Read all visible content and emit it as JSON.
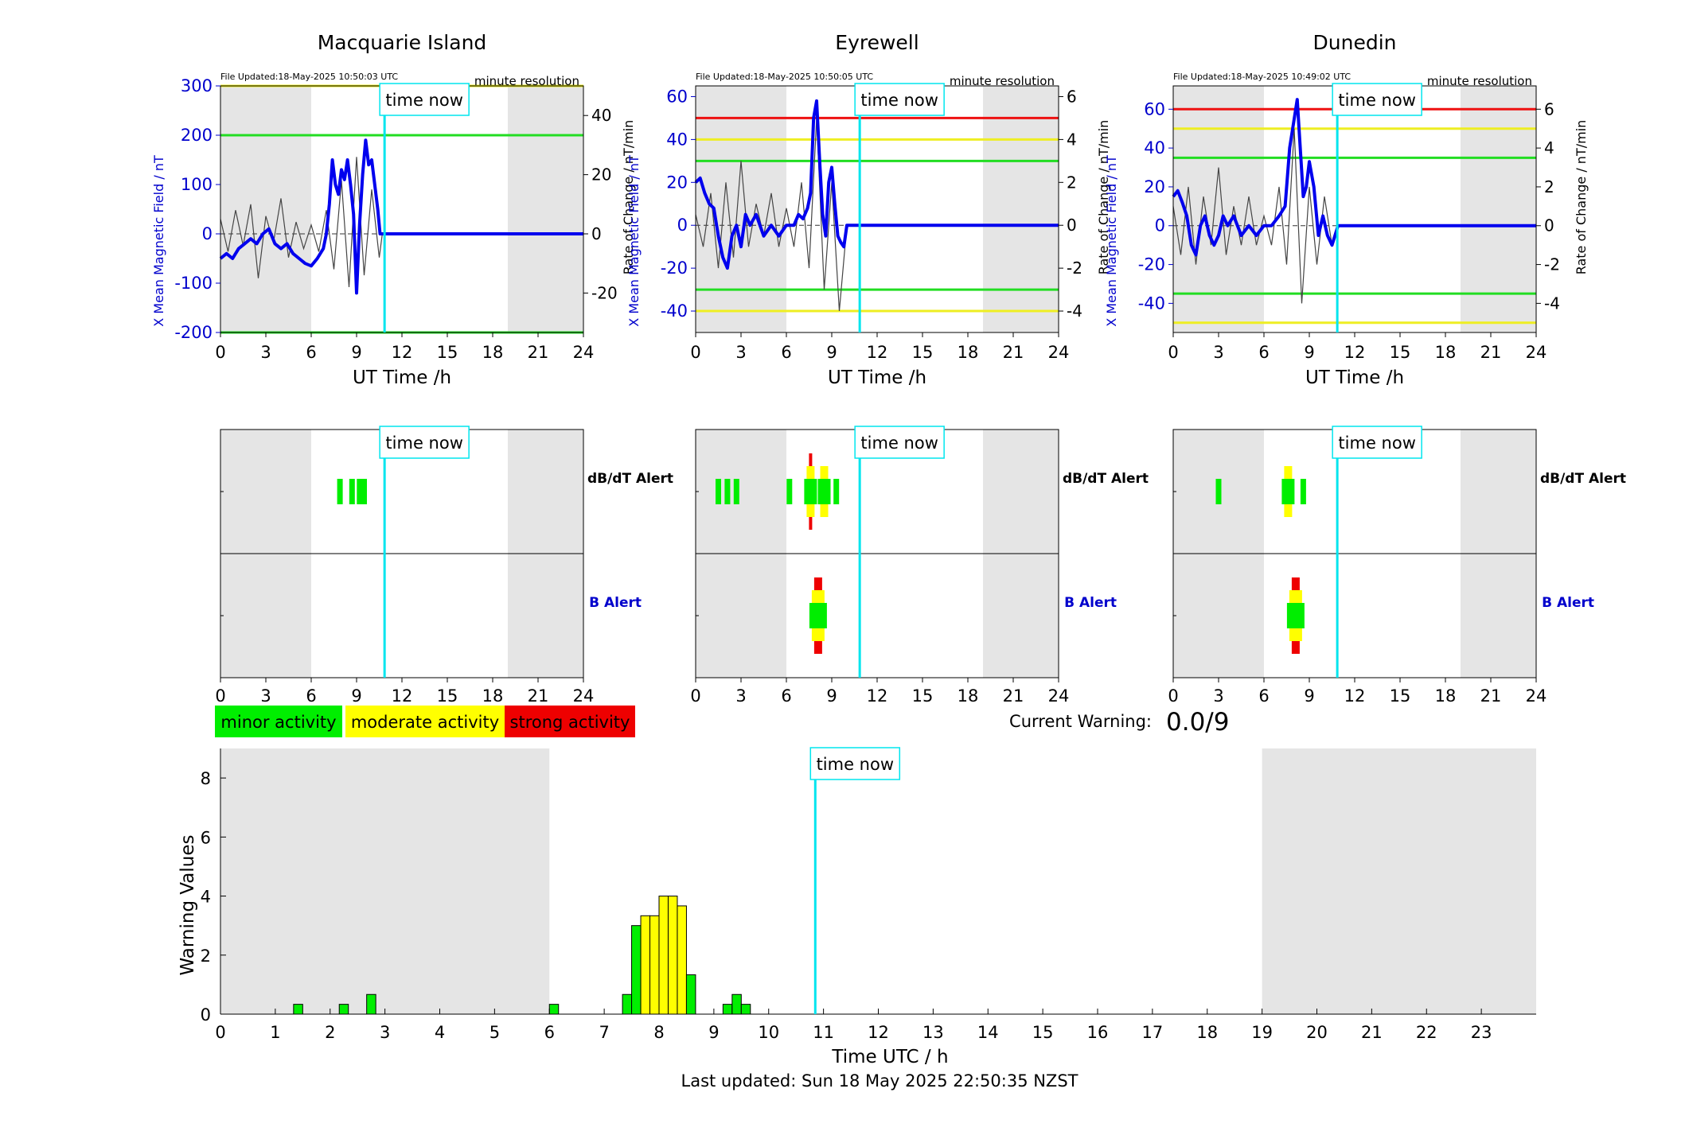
{
  "colors": {
    "night_shade": "#e5e5e5",
    "time_now_line": "#00e5ee",
    "series_bold": "#0000ee",
    "series_thin": "#444444",
    "axis_blue": "#0000cc",
    "minor": "#00ee00",
    "moderate": "#ffff00",
    "strong": "#ee0000",
    "threshold_green": "#22dd22",
    "threshold_yellow": "#eeee22",
    "threshold_red": "#ee1111"
  },
  "time_now_label": "time now",
  "minute_resolution_label": "minute resolution",
  "ut_xlabel": "UT Time /h",
  "left_ylabel": "X Mean Magnetic Field / nT",
  "right_ylabel": "Rate of Change / nT/min",
  "dbdt_alert_label": "dB/dT Alert",
  "b_alert_label": "B Alert",
  "legend": {
    "minor": "minor activity",
    "moderate": "moderate activity",
    "strong": "strong activity"
  },
  "current_warning": {
    "label": "Current Warning:",
    "value": "0.0/9"
  },
  "footer": "Last updated: Sun 18 May 2025 22:50:35 NZST",
  "time_now_hour": 10.85,
  "chart_data": [
    {
      "type": "line",
      "title": "Macquarie Island",
      "file_updated": "File Updated:18-May-2025 10:50:03 UTC",
      "xlabel": "UT Time /h",
      "ylabel": "X Mean Magnetic Field / nT",
      "y2label": "Rate of Change / nT/min",
      "xlim": [
        0,
        24
      ],
      "ylim": [
        -200,
        300
      ],
      "y2lim": [
        -33.33,
        50
      ],
      "xticks": [
        "0",
        "3",
        "6",
        "9",
        "12",
        "15",
        "18",
        "21",
        "24"
      ],
      "yticks": [
        -200,
        -100,
        0,
        100,
        200,
        300
      ],
      "y2ticks": [
        -20,
        0,
        20,
        40
      ],
      "night": [
        [
          0,
          6
        ],
        [
          19,
          24
        ]
      ],
      "thresholds": [
        {
          "value": 300,
          "level": "moderate"
        },
        {
          "value": 200,
          "level": "minor"
        },
        {
          "value": -200,
          "level": "minor"
        }
      ],
      "series": [
        {
          "x": [
            0,
            0.4,
            0.8,
            1.2,
            1.6,
            2.0,
            2.4,
            2.8,
            3.2,
            3.6,
            4.0,
            4.4,
            4.8,
            5.2,
            5.6,
            6.0,
            6.4,
            6.8,
            7.0,
            7.2,
            7.4,
            7.6,
            7.8,
            8.0,
            8.2,
            8.4,
            8.6,
            8.8,
            9.0,
            9.2,
            9.4,
            9.6,
            9.8,
            10.0,
            10.2,
            10.4,
            10.55,
            10.7,
            24
          ],
          "y": [
            -50,
            -40,
            -50,
            -30,
            -20,
            -10,
            -20,
            0,
            10,
            -20,
            -30,
            -20,
            -40,
            -50,
            -60,
            -65,
            -50,
            -30,
            0,
            60,
            150,
            100,
            80,
            130,
            110,
            150,
            100,
            40,
            -120,
            20,
            120,
            190,
            140,
            150,
            100,
            50,
            0,
            0,
            0
          ]
        }
      ],
      "rate_of_change": {
        "x": [
          0,
          0.5,
          1,
          1.5,
          2,
          2.5,
          3,
          3.5,
          4,
          4.5,
          5,
          5.5,
          6,
          6.5,
          7,
          7.5,
          8,
          8.5,
          9,
          9.5,
          10,
          10.5,
          10.7,
          24
        ],
        "y": [
          5,
          -6,
          8,
          -4,
          10,
          -15,
          6,
          -3,
          12,
          -8,
          4,
          -5,
          3,
          -6,
          8,
          -12,
          18,
          -18,
          26,
          -14,
          15,
          -8,
          0,
          0
        ]
      },
      "dbdt_alert": [
        {
          "x": 7.9,
          "level": "minor"
        },
        {
          "x": 8.7,
          "level": "minor"
        },
        {
          "x": 9.2,
          "level": "minor"
        },
        {
          "x": 9.5,
          "level": "minor"
        }
      ],
      "b_alert": []
    },
    {
      "type": "line",
      "title": "Eyrewell",
      "file_updated": "File Updated:18-May-2025 10:50:05 UTC",
      "xlabel": "UT Time /h",
      "ylabel": "X Mean Magnetic Field / nT",
      "y2label": "Rate of Change / nT/min",
      "xlim": [
        0,
        24
      ],
      "ylim": [
        -50,
        65
      ],
      "y2lim": [
        -5,
        6.5
      ],
      "xticks": [
        "0",
        "3",
        "6",
        "9",
        "12",
        "15",
        "18",
        "21",
        "24"
      ],
      "yticks": [
        -40,
        -20,
        0,
        20,
        40,
        60
      ],
      "y2ticks": [
        -4,
        -2,
        0,
        2,
        4,
        6
      ],
      "night": [
        [
          0,
          6
        ],
        [
          19,
          24
        ]
      ],
      "thresholds": [
        {
          "value": 50,
          "level": "strong"
        },
        {
          "value": 40,
          "level": "moderate"
        },
        {
          "value": 30,
          "level": "minor"
        },
        {
          "value": -30,
          "level": "minor"
        },
        {
          "value": -40,
          "level": "moderate"
        }
      ],
      "series": [
        {
          "x": [
            0,
            0.3,
            0.6,
            0.9,
            1.2,
            1.5,
            1.8,
            2.1,
            2.4,
            2.7,
            3.0,
            3.3,
            3.6,
            4.0,
            4.5,
            5.0,
            5.5,
            6.0,
            6.5,
            6.8,
            7.1,
            7.4,
            7.6,
            7.8,
            8.0,
            8.2,
            8.4,
            8.6,
            8.8,
            9.0,
            9.2,
            9.4,
            9.6,
            9.8,
            10.0,
            24
          ],
          "y": [
            20,
            22,
            15,
            10,
            8,
            -5,
            -15,
            -20,
            -5,
            0,
            -10,
            5,
            0,
            5,
            -5,
            0,
            -5,
            0,
            0,
            5,
            3,
            8,
            15,
            50,
            58,
            30,
            5,
            -5,
            20,
            27,
            10,
            -5,
            -8,
            -10,
            0,
            0
          ]
        }
      ],
      "rate_of_change": {
        "x": [
          0,
          0.5,
          1,
          1.5,
          2,
          2.5,
          3,
          3.5,
          4,
          4.5,
          5,
          5.5,
          6,
          6.5,
          7,
          7.5,
          8,
          8.5,
          9,
          9.5,
          10,
          24
        ],
        "y": [
          0.5,
          -1,
          1.5,
          -2,
          2,
          -1.5,
          3,
          -1,
          1,
          -0.5,
          1.5,
          -1,
          0.8,
          -1,
          2,
          -2,
          5,
          -3,
          2,
          -4,
          0,
          0
        ]
      },
      "dbdt_alert": [
        {
          "x": 1.5,
          "level": "minor"
        },
        {
          "x": 2.1,
          "level": "minor"
        },
        {
          "x": 2.7,
          "level": "minor"
        },
        {
          "x": 6.2,
          "level": "minor"
        },
        {
          "x": 7.6,
          "level": "strong"
        },
        {
          "x": 8.5,
          "level": "moderate"
        },
        {
          "x": 9.3,
          "level": "minor"
        }
      ],
      "b_alert": [
        {
          "x": 8.1,
          "level": "strong"
        }
      ]
    },
    {
      "type": "line",
      "title": "Dunedin",
      "file_updated": "File Updated:18-May-2025 10:49:02 UTC",
      "xlabel": "UT Time /h",
      "ylabel": "X Mean Magnetic Field / nT",
      "y2label": "Rate of Change / nT/min",
      "xlim": [
        0,
        24
      ],
      "ylim": [
        -55,
        72
      ],
      "y2lim": [
        -5.5,
        7.2
      ],
      "xticks": [
        "0",
        "3",
        "6",
        "9",
        "12",
        "15",
        "18",
        "21",
        "24"
      ],
      "yticks": [
        -40,
        -20,
        0,
        20,
        40,
        60
      ],
      "y2ticks": [
        -4,
        -2,
        0,
        2,
        4,
        6
      ],
      "night": [
        [
          0,
          6
        ],
        [
          19,
          24
        ]
      ],
      "thresholds": [
        {
          "value": 60,
          "level": "strong"
        },
        {
          "value": 50,
          "level": "moderate"
        },
        {
          "value": 35,
          "level": "minor"
        },
        {
          "value": -35,
          "level": "minor"
        },
        {
          "value": -50,
          "level": "moderate"
        }
      ],
      "series": [
        {
          "x": [
            0,
            0.3,
            0.6,
            0.9,
            1.2,
            1.5,
            1.8,
            2.1,
            2.4,
            2.7,
            3.0,
            3.3,
            3.6,
            4.0,
            4.5,
            5.0,
            5.5,
            6.0,
            6.5,
            7.0,
            7.4,
            7.7,
            8.0,
            8.2,
            8.4,
            8.6,
            8.8,
            9.0,
            9.3,
            9.6,
            9.9,
            10.2,
            10.5,
            10.7,
            10.9,
            24
          ],
          "y": [
            15,
            18,
            12,
            5,
            -10,
            -15,
            0,
            5,
            -5,
            -10,
            -5,
            5,
            0,
            5,
            -5,
            0,
            -5,
            0,
            0,
            5,
            10,
            40,
            55,
            65,
            40,
            15,
            20,
            33,
            20,
            -5,
            5,
            -5,
            -10,
            -5,
            0,
            0
          ]
        }
      ],
      "rate_of_change": {
        "x": [
          0,
          0.5,
          1,
          1.5,
          2,
          2.5,
          3,
          3.5,
          4,
          4.5,
          5,
          5.5,
          6,
          6.5,
          7,
          7.5,
          8,
          8.5,
          9,
          9.5,
          10,
          10.5,
          10.9,
          24
        ],
        "y": [
          1,
          -1.5,
          2,
          -2,
          1.5,
          -1,
          3,
          -1.5,
          1,
          -1,
          1.5,
          -1,
          0.5,
          -1,
          2,
          -2,
          5,
          -4,
          2,
          -2,
          1.5,
          -1,
          0,
          0
        ]
      },
      "dbdt_alert": [
        {
          "x": 3.0,
          "level": "minor"
        },
        {
          "x": 7.6,
          "level": "moderate"
        },
        {
          "x": 8.6,
          "level": "minor"
        }
      ],
      "b_alert": [
        {
          "x": 8.1,
          "level": "strong"
        }
      ]
    },
    {
      "type": "bar",
      "xlabel": "Time UTC / h",
      "ylabel": "Warning Values",
      "xlim": [
        0,
        24
      ],
      "ylim": [
        0,
        9
      ],
      "xticks": [
        "0",
        "1",
        "2",
        "3",
        "4",
        "5",
        "6",
        "7",
        "8",
        "9",
        "10",
        "11",
        "12",
        "13",
        "14",
        "15",
        "16",
        "17",
        "18",
        "19",
        "20",
        "21",
        "22",
        "23"
      ],
      "yticks": [
        0,
        2,
        4,
        6,
        8
      ],
      "night": [
        [
          0,
          6
        ],
        [
          19,
          24
        ]
      ],
      "bars": [
        {
          "x": 1.4167,
          "value": 0.333,
          "level": "minor"
        },
        {
          "x": 2.25,
          "value": 0.333,
          "level": "minor"
        },
        {
          "x": 2.75,
          "value": 0.667,
          "level": "minor"
        },
        {
          "x": 6.0833,
          "value": 0.333,
          "level": "minor"
        },
        {
          "x": 7.4167,
          "value": 0.667,
          "level": "minor"
        },
        {
          "x": 7.5833,
          "value": 3.0,
          "level": "minor"
        },
        {
          "x": 7.75,
          "value": 3.333,
          "level": "moderate"
        },
        {
          "x": 7.9167,
          "value": 3.333,
          "level": "moderate"
        },
        {
          "x": 8.0833,
          "value": 4.0,
          "level": "moderate"
        },
        {
          "x": 8.25,
          "value": 4.0,
          "level": "moderate"
        },
        {
          "x": 8.4167,
          "value": 3.667,
          "level": "moderate"
        },
        {
          "x": 8.5833,
          "value": 1.333,
          "level": "minor"
        },
        {
          "x": 9.25,
          "value": 0.333,
          "level": "minor"
        },
        {
          "x": 9.4167,
          "value": 0.667,
          "level": "minor"
        },
        {
          "x": 9.5833,
          "value": 0.333,
          "level": "minor"
        }
      ]
    }
  ]
}
